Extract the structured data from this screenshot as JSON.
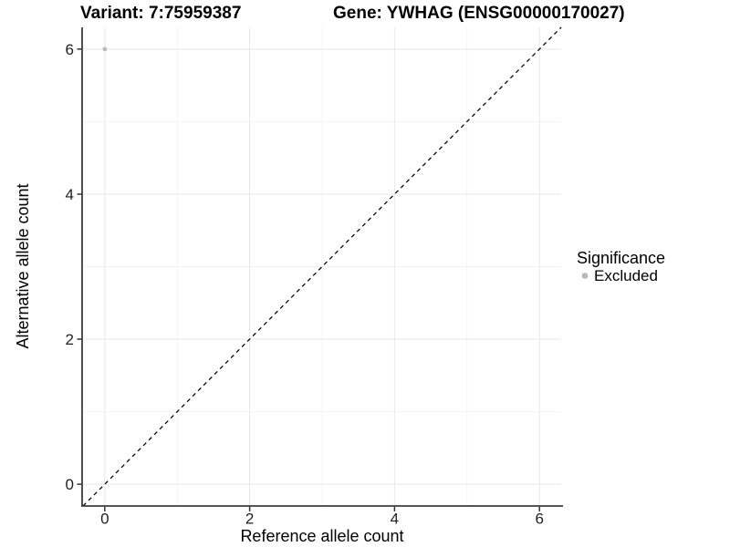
{
  "header": {
    "variant_title": "Variant: 7:75959387",
    "gene_title": "Gene: YWHAG (ENSG00000170027)"
  },
  "colors": {
    "background": "#ffffff",
    "grid_major": "#e7e7e7",
    "grid_minor": "#f3f3f3",
    "axis_line": "#3c3c3c",
    "tick_mark": "#333333",
    "tick_label": "#1f1f1f",
    "point": "#b9b9b9",
    "dashed_line": "#000000",
    "text": "#000000"
  },
  "chart_data": {
    "type": "scatter",
    "title": "Variant: 7:75959387   Gene: YWHAG (ENSG00000170027)",
    "xlabel": "Reference allele count",
    "ylabel": "Alternative allele count",
    "xlim": [
      -0.3,
      6.3
    ],
    "ylim": [
      -0.3,
      6.3
    ],
    "x_ticks": [
      0,
      2,
      4,
      6
    ],
    "y_ticks": [
      0,
      2,
      4,
      6
    ],
    "x_minor": [
      1,
      3,
      5
    ],
    "y_minor": [
      1,
      3,
      5
    ],
    "grid": "on",
    "points": [
      {
        "x": 0,
        "y": 6,
        "series": "Excluded"
      }
    ],
    "reference_line": {
      "type": "identity",
      "slope": 1,
      "intercept": 0,
      "style": "dashed"
    },
    "legend": {
      "title": "Significance",
      "position": "right",
      "entries": [
        {
          "label": "Excluded",
          "color": "#b9b9b9",
          "marker": "circle"
        }
      ]
    }
  }
}
